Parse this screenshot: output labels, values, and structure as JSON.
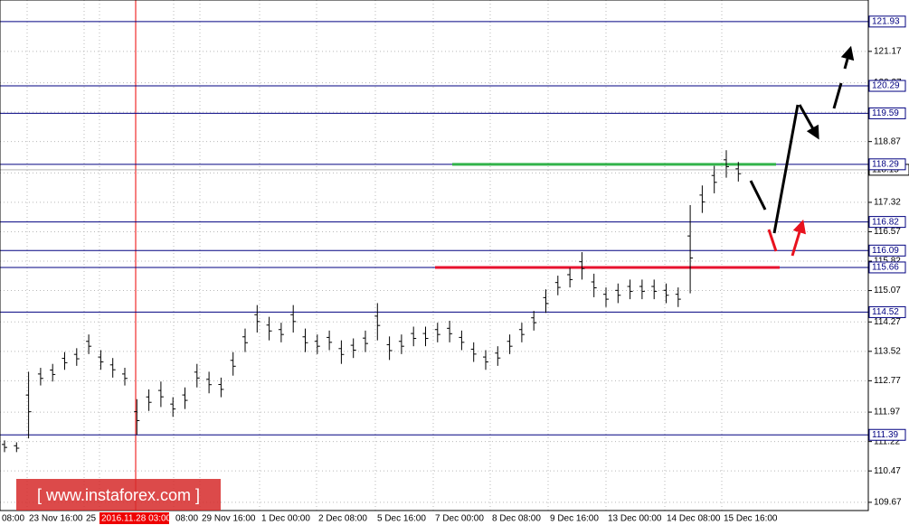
{
  "chart_data": {
    "type": "hilo",
    "ylim": [
      109.46,
      122.48
    ],
    "yticks": [
      109.67,
      110.47,
      111.22,
      111.97,
      112.77,
      113.52,
      114.27,
      115.07,
      115.82,
      116.57,
      117.32,
      118.07,
      118.87,
      119.62,
      120.37,
      121.17
    ],
    "levels": [
      121.93,
      120.29,
      119.59,
      118.29,
      116.82,
      116.09,
      115.66,
      114.52,
      111.39
    ],
    "price": 118.15,
    "resistance": 118.29,
    "support": 115.66,
    "high": [
      111.25,
      111.2,
      113.0,
      113.1,
      113.2,
      113.5,
      113.6,
      113.95,
      113.55,
      113.35,
      113.1,
      112.3,
      112.55,
      112.75,
      112.35,
      112.6,
      113.2,
      113.0,
      112.85,
      113.5,
      114.1,
      114.7,
      114.4,
      114.25,
      114.7,
      114.1,
      113.95,
      114.05,
      113.8,
      113.85,
      114.05,
      114.75,
      113.9,
      113.95,
      114.15,
      114.15,
      114.25,
      114.3,
      114.05,
      113.75,
      113.55,
      113.65,
      113.95,
      114.25,
      114.55,
      115.1,
      115.45,
      115.65,
      116.05,
      115.5,
      115.15,
      115.25,
      115.35,
      115.35,
      115.35,
      115.25,
      115.15,
      117.25,
      117.75,
      118.25,
      118.65,
      118.35
    ],
    "low": [
      110.95,
      110.95,
      111.3,
      112.65,
      112.75,
      113.05,
      113.15,
      113.45,
      113.05,
      112.85,
      112.65,
      111.39,
      112.0,
      112.1,
      111.85,
      112.05,
      112.6,
      112.45,
      112.35,
      112.9,
      113.5,
      114.0,
      113.8,
      113.75,
      114.0,
      113.5,
      113.45,
      113.55,
      113.2,
      113.35,
      113.5,
      113.8,
      113.3,
      113.45,
      113.65,
      113.65,
      113.75,
      113.75,
      113.55,
      113.25,
      113.05,
      113.15,
      113.45,
      113.75,
      114.05,
      114.5,
      114.95,
      115.15,
      115.35,
      114.9,
      114.65,
      114.75,
      114.85,
      114.85,
      114.85,
      114.75,
      114.65,
      115.0,
      117.05,
      117.55,
      117.95,
      117.85
    ],
    "x_labels": [
      "08:00",
      "23 Nov 16:00",
      "25",
      "2016.11.28 03:00",
      "08:00",
      "29 Nov 16:00",
      "1 Dec 00:00",
      "2 Dec 08:00",
      "5 Dec 16:00",
      "7 Dec 00:00",
      "8 Dec 08:00",
      "9 Dec 16:00",
      "13 Dec 00:00",
      "14 Dec 08:00",
      "15 Dec 16:00"
    ],
    "watermark": "[ www.instaforex.com ]"
  }
}
